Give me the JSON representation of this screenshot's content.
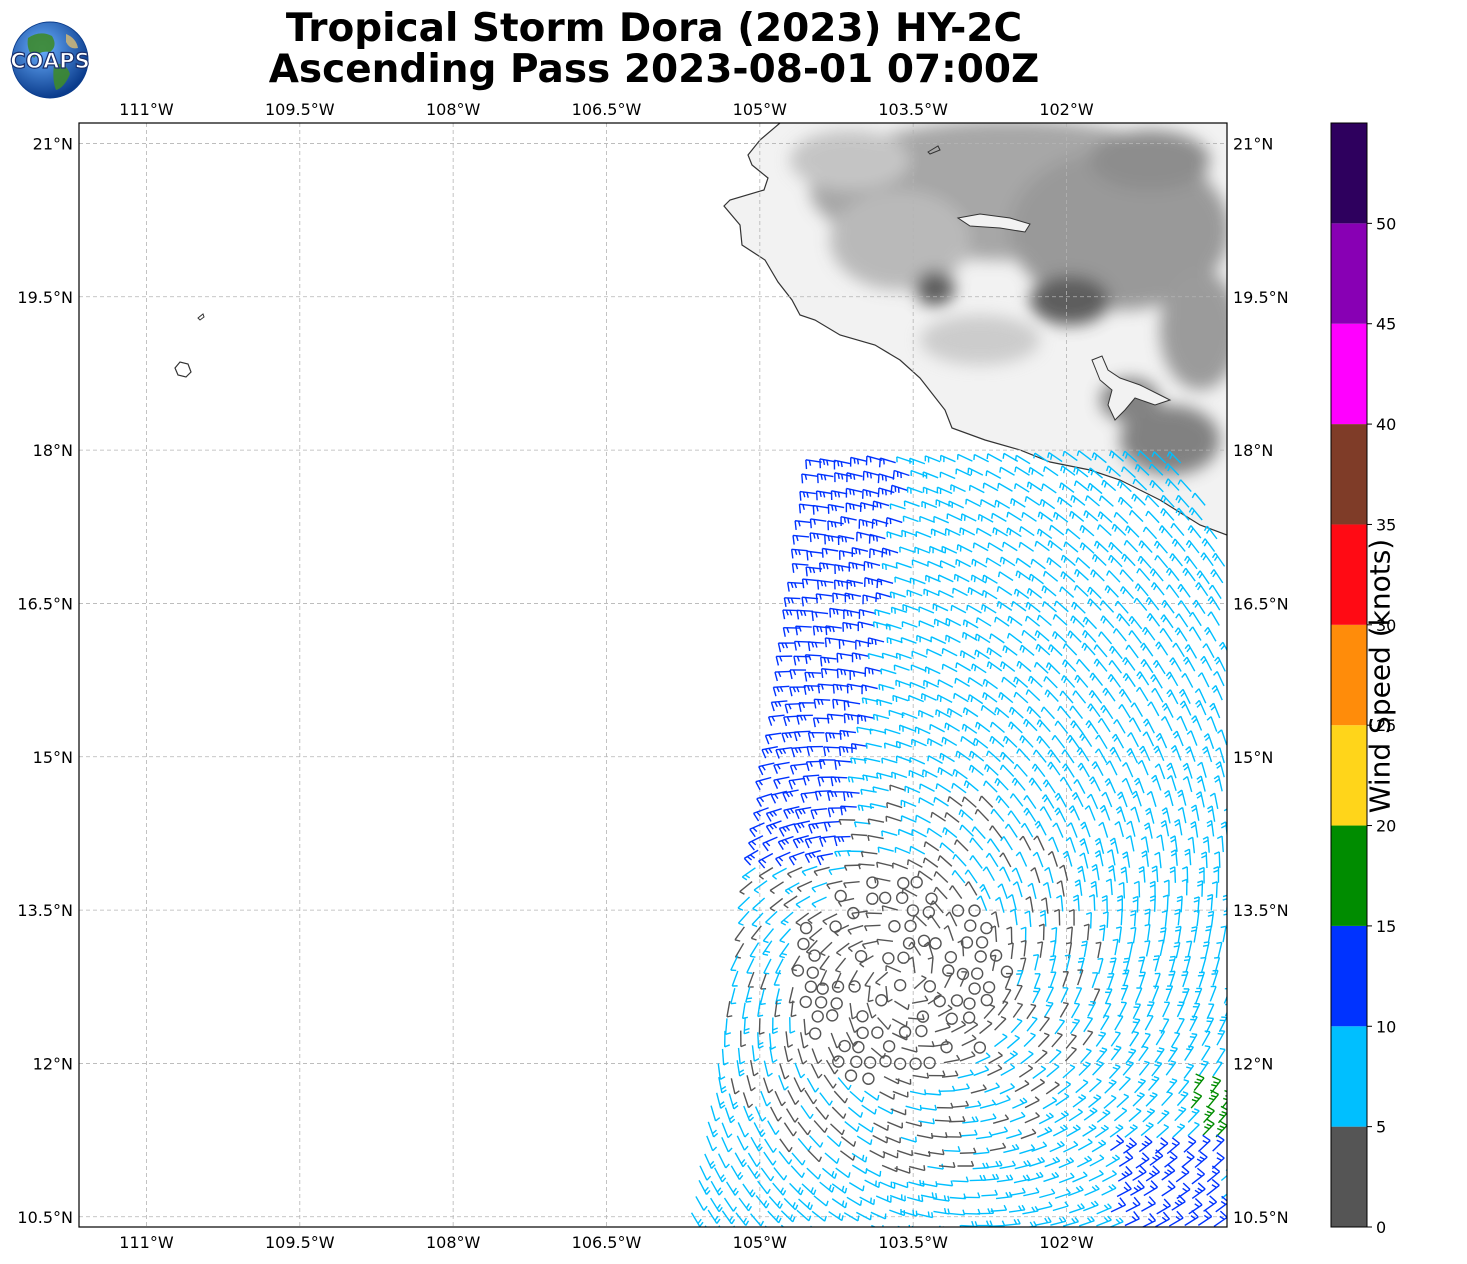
{
  "title_line1": "Tropical Storm Dora (2023) HY-2C",
  "title_line2": "Ascending Pass 2023-08-01 07:00Z",
  "logo_text": "COAPS",
  "map": {
    "lon_range": [
      -111.66,
      -100.43
    ],
    "lat_range": [
      10.4,
      21.2
    ],
    "lon_ticks": [
      "111°W",
      "109.5°W",
      "108°W",
      "106.5°W",
      "105°W",
      "103.5°W",
      "102°W"
    ],
    "lon_tick_values": [
      -111,
      -109.5,
      -108,
      -106.5,
      -105,
      -103.5,
      -102
    ],
    "lat_ticks": [
      "21°N",
      "19.5°N",
      "18°N",
      "16.5°N",
      "15°N",
      "13.5°N",
      "12°N",
      "10.5°N"
    ],
    "lat_tick_values": [
      21,
      19.5,
      18,
      16.5,
      15,
      13.5,
      12,
      10.5
    ],
    "gridlines": true,
    "land_shading": "terrain grayscale",
    "colors": {
      "land_light": "#f4f4f4",
      "land_dark": "#5a5a5a",
      "coast": "#333333",
      "grid": "#b4b4b4"
    }
  },
  "colorbar": {
    "label": "Wind Speed (knots)",
    "tick_labels": [
      "0",
      "5",
      "10",
      "15",
      "20",
      "25",
      "30",
      "35",
      "40",
      "45",
      "50"
    ],
    "bins": [
      {
        "from": 0,
        "to": 5,
        "color": "#555555"
      },
      {
        "from": 5,
        "to": 10,
        "color": "#00bfff"
      },
      {
        "from": 10,
        "to": 15,
        "color": "#0033ff"
      },
      {
        "from": 15,
        "to": 20,
        "color": "#008c00"
      },
      {
        "from": 20,
        "to": 25,
        "color": "#ffd51a"
      },
      {
        "from": 25,
        "to": 30,
        "color": "#ff8c0a"
      },
      {
        "from": 30,
        "to": 35,
        "color": "#ff0a14"
      },
      {
        "from": 35,
        "to": 40,
        "color": "#7f3c28"
      },
      {
        "from": 40,
        "to": 45,
        "color": "#ff00ff"
      },
      {
        "from": 45,
        "to": 50,
        "color": "#8800b4"
      },
      {
        "from": 50,
        "to": 55,
        "color": "#2e005e"
      }
    ]
  }
}
